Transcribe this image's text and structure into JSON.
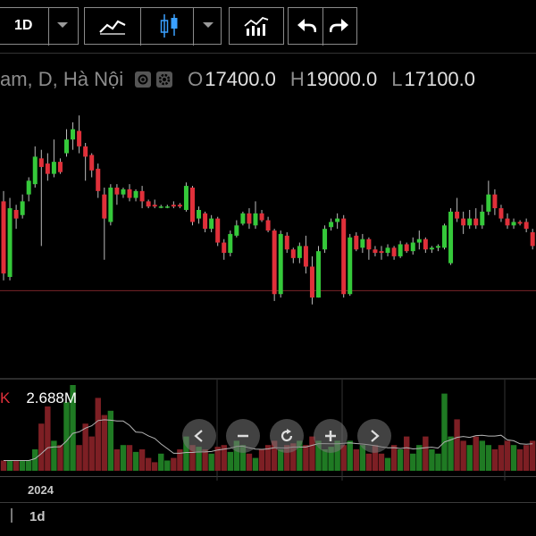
{
  "toolbar": {
    "interval": "1D",
    "icons": [
      "chevron-down-icon",
      "line-chart-icon",
      "candlestick-icon",
      "chevron-down-icon",
      "indicators-icon",
      "undo-icon",
      "redo-icon"
    ]
  },
  "legend": {
    "symbol": "am, D, Hà Nội",
    "open_key": "O",
    "open": "17400.0",
    "high_key": "H",
    "high": "19000.0",
    "low_key": "L",
    "low": "17100.0"
  },
  "volume": {
    "label": "K",
    "value": "2.688M"
  },
  "time_axis": {
    "year_label": "2024",
    "interval_label": "1d"
  },
  "colors": {
    "up": "#35c93a",
    "down": "#e0303a",
    "background": "#000000",
    "price_line": "#7a2428"
  },
  "controls": [
    "scroll-left-icon",
    "zoom-out-icon",
    "reset-icon",
    "zoom-in-icon",
    "scroll-right-icon"
  ],
  "chart_data": {
    "type": "candlestick",
    "series": [
      {
        "name": "price",
        "candles": [
          [
            19000,
            16900,
            16700,
            19300
          ],
          [
            16800,
            18800,
            16700,
            19100
          ],
          [
            18750,
            18500,
            18200,
            18900
          ],
          [
            18600,
            19000,
            18500,
            19200
          ],
          [
            19200,
            19600,
            19000,
            19700
          ],
          [
            19500,
            20300,
            19400,
            20600
          ],
          [
            20250,
            20000,
            17700,
            20500
          ],
          [
            20100,
            19800,
            19600,
            20400
          ],
          [
            19800,
            20150,
            19700,
            20800
          ],
          [
            20150,
            19850,
            19800,
            20250
          ],
          [
            20400,
            20800,
            20300,
            21100
          ],
          [
            20800,
            21100,
            20500,
            21300
          ],
          [
            21050,
            20600,
            20400,
            21500
          ],
          [
            20600,
            20300,
            19600,
            20700
          ],
          [
            20350,
            19900,
            19700,
            20400
          ],
          [
            19950,
            19300,
            19100,
            20100
          ],
          [
            19200,
            18500,
            17300,
            19400
          ],
          [
            18400,
            19400,
            18300,
            19500
          ],
          [
            19400,
            19200,
            18900,
            19500
          ],
          [
            19200,
            19350,
            19100,
            19400
          ],
          [
            19350,
            19100,
            19000,
            19500
          ],
          [
            19100,
            19300,
            19000,
            19350
          ],
          [
            19300,
            19000,
            18800,
            19450
          ],
          [
            19000,
            18850,
            18800,
            19050
          ],
          [
            18900,
            18850,
            18800,
            19050
          ],
          [
            18850,
            18850,
            18800,
            18900
          ],
          [
            18850,
            18850,
            18800,
            18900
          ],
          [
            18900,
            18850,
            18800,
            19000
          ],
          [
            18900,
            18850,
            18800,
            18950
          ],
          [
            18750,
            19450,
            18700,
            19550
          ],
          [
            19400,
            18400,
            18300,
            19450
          ],
          [
            18500,
            18750,
            18350,
            18850
          ],
          [
            18650,
            18200,
            18100,
            18700
          ],
          [
            18200,
            18500,
            18100,
            18600
          ],
          [
            18500,
            17800,
            17700,
            18550
          ],
          [
            17800,
            17500,
            17300,
            17900
          ],
          [
            17500,
            18050,
            17400,
            18150
          ],
          [
            18000,
            18300,
            17950,
            18450
          ],
          [
            18350,
            18650,
            18300,
            18700
          ],
          [
            18650,
            18350,
            18200,
            18800
          ],
          [
            18300,
            18650,
            18200,
            19000
          ],
          [
            18650,
            18450,
            18400,
            18750
          ],
          [
            18450,
            18150,
            18100,
            18550
          ],
          [
            18150,
            16300,
            16100,
            18200
          ],
          [
            16300,
            18050,
            16200,
            18150
          ],
          [
            18000,
            17600,
            17500,
            18100
          ],
          [
            17600,
            17350,
            17200,
            17650
          ],
          [
            17350,
            17700,
            17200,
            17800
          ],
          [
            17700,
            17100,
            16900,
            18000
          ],
          [
            17100,
            16200,
            16000,
            17400
          ],
          [
            16200,
            17550,
            16200,
            17700
          ],
          [
            17600,
            18200,
            17500,
            18300
          ],
          [
            18250,
            18400,
            18150,
            18500
          ],
          [
            18400,
            18500,
            18200,
            18650
          ],
          [
            18500,
            16300,
            16200,
            18600
          ],
          [
            16300,
            17950,
            16250,
            18050
          ],
          [
            18000,
            17600,
            17550,
            18100
          ],
          [
            17650,
            17900,
            17500,
            18050
          ],
          [
            17900,
            17600,
            17300,
            17950
          ],
          [
            17600,
            17500,
            17400,
            17700
          ],
          [
            17550,
            17500,
            17300,
            17700
          ],
          [
            17500,
            17650,
            17400,
            17750
          ],
          [
            17650,
            17400,
            17300,
            17700
          ],
          [
            17400,
            17750,
            17350,
            17850
          ],
          [
            17750,
            17550,
            17500,
            17800
          ],
          [
            17550,
            17800,
            17450,
            17950
          ],
          [
            17800,
            17900,
            17600,
            18150
          ],
          [
            17900,
            17600,
            17500,
            17950
          ],
          [
            17600,
            17650,
            17500,
            17700
          ],
          [
            17650,
            17700,
            17550,
            17750
          ],
          [
            17650,
            18300,
            17600,
            18350
          ],
          [
            17200,
            18700,
            17150,
            18800
          ],
          [
            18700,
            18500,
            18400,
            19100
          ],
          [
            18500,
            18300,
            18050,
            18700
          ],
          [
            18300,
            18500,
            18200,
            18750
          ],
          [
            18500,
            18300,
            18200,
            18800
          ],
          [
            18300,
            18700,
            18200,
            18900
          ],
          [
            18700,
            19200,
            18600,
            19600
          ],
          [
            19200,
            18800,
            18600,
            19350
          ],
          [
            18800,
            18500,
            18400,
            18900
          ],
          [
            18500,
            18300,
            18200,
            18650
          ],
          [
            18300,
            18400,
            18200,
            18500
          ],
          [
            18400,
            18350,
            18300,
            18450
          ],
          [
            18400,
            18200,
            18100,
            18500
          ],
          [
            18100,
            17700,
            17600,
            18200
          ]
        ]
      },
      {
        "name": "volume",
        "values": [
          0.12,
          0.12,
          0.12,
          0.12,
          0.12,
          0.25,
          0.55,
          0.75,
          0.35,
          0.3,
          0.8,
          1.0,
          0.3,
          0.55,
          0.4,
          0.85,
          0.65,
          0.7,
          0.25,
          0.3,
          0.3,
          0.22,
          0.25,
          0.15,
          0.1,
          0.2,
          0.12,
          0.15,
          0.25,
          0.4,
          0.3,
          0.28,
          0.25,
          0.2,
          0.28,
          0.3,
          0.22,
          0.35,
          0.3,
          0.2,
          0.15,
          0.25,
          0.3,
          0.35,
          0.25,
          0.3,
          0.32,
          0.35,
          0.3,
          0.4,
          0.35,
          0.25,
          0.28,
          0.35,
          0.3,
          0.35,
          0.25,
          0.3,
          0.2,
          0.3,
          0.2,
          0.15,
          0.3,
          0.25,
          0.4,
          0.2,
          0.3,
          0.4,
          0.25,
          0.2,
          0.9,
          0.4,
          0.6,
          0.35,
          0.3,
          0.4,
          0.35,
          0.3,
          0.25,
          0.3,
          0.35,
          0.3,
          0.25,
          0.3,
          0.35
        ]
      }
    ],
    "price_range": [
      15500,
      22000
    ],
    "reference_line": 16400,
    "grid": false
  }
}
